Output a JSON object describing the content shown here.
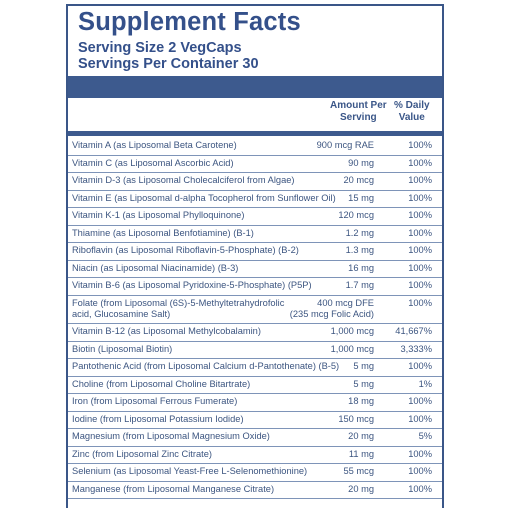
{
  "title": "Supplement Facts",
  "serving_size": "Serving Size 2 VegCaps",
  "servings_per_container": "Servings Per Container 30",
  "columns": {
    "amount_line1": "Amount Per",
    "amount_line2": "Serving",
    "dv_line1": "% Daily",
    "dv_line2": "Value"
  },
  "rows": [
    {
      "name": "Vitamin A (as Liposomal Beta Carotene)",
      "amount": "900 mcg RAE",
      "dv": "100%"
    },
    {
      "name": "Vitamin C (as Liposomal Ascorbic Acid)",
      "amount": "90 mg",
      "dv": "100%"
    },
    {
      "name": "Vitamin D-3 (as Liposomal Cholecalciferol from Algae)",
      "amount": "20 mcg",
      "dv": "100%"
    },
    {
      "name": "Vitamin E (as Liposomal d-alpha Tocopherol from Sunflower Oil)",
      "amount": "15 mg",
      "dv": "100%"
    },
    {
      "name": "Vitamin K-1 (as Liposomal Phylloquinone)",
      "amount": "120 mcg",
      "dv": "100%"
    },
    {
      "name": "Thiamine (as Liposomal Benfotiamine) (B-1)",
      "amount": "1.2 mg",
      "dv": "100%"
    },
    {
      "name": "Riboflavin (as Liposomal Riboflavin-5-Phosphate) (B-2)",
      "amount": "1.3 mg",
      "dv": "100%"
    },
    {
      "name": "Niacin (as Liposomal Niacinamide) (B-3)",
      "amount": "16 mg",
      "dv": "100%"
    },
    {
      "name": "Vitamin B-6 (as Liposomal Pyridoxine-5-Phosphate) (P5P)",
      "amount": "1.7 mg",
      "dv": "100%"
    },
    {
      "name": "Folate (from Liposomal (6S)-5-Methyltetrahydrofolic",
      "amount": "400 mcg DFE",
      "dv": "100%",
      "name2": "acid, Glucosamine Salt)",
      "amount2": "(235 mcg Folic Acid)"
    },
    {
      "name": "Vitamin B-12 (as Liposomal Methylcobalamin)",
      "amount": "1,000 mcg",
      "dv": "41,667%"
    },
    {
      "name": "Biotin (Liposomal Biotin)",
      "amount": "1,000 mcg",
      "dv": "3,333%"
    },
    {
      "name": "Pantothenic Acid (from Liposomal Calcium d-Pantothenate) (B-5)",
      "amount": "5 mg",
      "dv": "100%"
    },
    {
      "name": "Choline (from Liposomal Choline Bitartrate)",
      "amount": "5 mg",
      "dv": "1%"
    },
    {
      "name": "Iron (from Liposomal Ferrous Fumerate)",
      "amount": "18 mg",
      "dv": "100%"
    },
    {
      "name": "Iodine (from Liposomal Potassium Iodide)",
      "amount": "150 mcg",
      "dv": "100%"
    },
    {
      "name": "Magnesium (from Liposomal Magnesium Oxide)",
      "amount": "20 mg",
      "dv": "5%"
    },
    {
      "name": "Zinc (from Liposomal Zinc Citrate)",
      "amount": "11 mg",
      "dv": "100%"
    },
    {
      "name": "Selenium (as Liposomal Yeast-Free L-Selenomethionine)",
      "amount": "55 mcg",
      "dv": "100%"
    },
    {
      "name": "Manganese (from Liposomal Manganese Citrate)",
      "amount": "20 mg",
      "dv": "100%"
    }
  ]
}
